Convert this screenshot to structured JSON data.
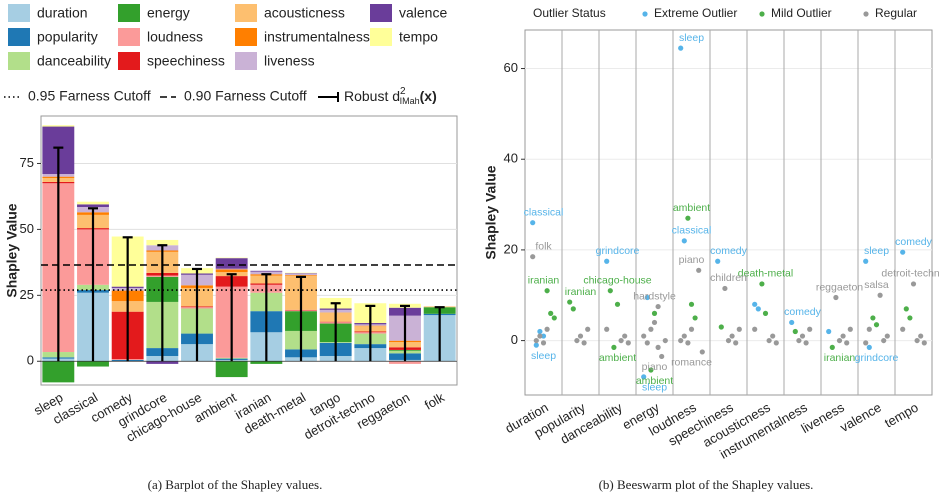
{
  "chart_data": [
    {
      "type": "bar",
      "caption": "(a) Barplot of the Shapley values.",
      "y_label": "Shapley Value",
      "categories": [
        "sleep",
        "classical",
        "comedy",
        "grindcore",
        "chicago-house",
        "ambient",
        "iranian",
        "death-metal",
        "tango",
        "detroit-techno",
        "reggaeton",
        "folk"
      ],
      "ylim": [
        -9,
        93
      ],
      "yticks": [
        0,
        25,
        50,
        75
      ],
      "grid": true,
      "stacked": true,
      "series": [
        {
          "name": "duration",
          "color": "#a6cee3",
          "values": [
            1,
            26,
            0,
            2,
            6.5,
            0.5,
            11,
            1.5,
            2,
            5,
            0.5,
            17.5
          ]
        },
        {
          "name": "popularity",
          "color": "#1f78b4",
          "values": [
            0.5,
            1,
            0.5,
            3,
            4,
            0.5,
            8,
            3,
            5,
            1.5,
            2.5,
            0.5
          ]
        },
        {
          "name": "danceability",
          "color": "#b2df8a",
          "values": [
            2,
            2,
            0,
            17.5,
            9.5,
            0.3,
            7,
            7,
            0.3,
            4,
            1,
            0
          ]
        },
        {
          "name": "energy",
          "color": "#33a02c",
          "values": [
            -8,
            -2,
            0,
            9.5,
            0,
            -6,
            -1,
            7.5,
            7,
            0,
            0.3,
            2.5
          ]
        },
        {
          "name": "loudness",
          "color": "#fb9a99",
          "values": [
            64,
            21,
            0.3,
            0.5,
            0.5,
            27,
            3,
            0.3,
            0.5,
            0.5,
            -1,
            0
          ]
        },
        {
          "name": "speechiness",
          "color": "#e31a1c",
          "values": [
            0.5,
            0.5,
            18,
            1,
            0.3,
            4,
            0.5,
            0.2,
            0.2,
            0.3,
            1,
            0
          ]
        },
        {
          "name": "acousticness",
          "color": "#fdbf6f",
          "values": [
            1.5,
            5,
            4,
            8,
            7,
            1.5,
            3,
            13,
            3.5,
            2,
            2,
            0.3
          ]
        },
        {
          "name": "instrumentalness",
          "color": "#ff7f00",
          "values": [
            0.5,
            1,
            4,
            0.5,
            1,
            1,
            0.5,
            0.2,
            0,
            0.2,
            0.5,
            0
          ]
        },
        {
          "name": "liveness",
          "color": "#cab2d6",
          "values": [
            1,
            2,
            1,
            2,
            4,
            0.3,
            1,
            0.5,
            1,
            0.5,
            9.5,
            0
          ]
        },
        {
          "name": "valence",
          "color": "#6a3d9a",
          "values": [
            18,
            1,
            0.5,
            -1,
            0.5,
            4,
            0.3,
            0.2,
            0.5,
            0.5,
            3,
            0
          ]
        },
        {
          "name": "tempo",
          "color": "#ffff99",
          "values": [
            0.5,
            1,
            19,
            2,
            2,
            0.2,
            0,
            0.2,
            4,
            7.5,
            1.5,
            0
          ]
        }
      ],
      "cutoffs": [
        {
          "label": "0.95 Farness Cutoff",
          "value": 27,
          "dash": "dotted"
        },
        {
          "label": "0.90 Farness Cutoff",
          "value": 36.5,
          "dash": "dashed"
        }
      ],
      "errorbar": {
        "name": "Robust d",
        "sup": "2",
        "sub": "IMah",
        "arg": "(x)",
        "color": "#000000",
        "values": [
          81,
          58,
          47,
          44,
          35,
          33,
          33,
          32,
          22,
          21,
          21,
          20.5
        ]
      }
    },
    {
      "type": "scatter",
      "caption": "(b) Beeswarm plot of the Shapley values.",
      "y_label": "Shapley Value",
      "legend_title": "Outlier Status",
      "categories": [
        "duration",
        "popularity",
        "danceability",
        "energy",
        "loudness",
        "speechiness",
        "acousticness",
        "instrumentalness",
        "liveness",
        "valence",
        "tempo"
      ],
      "ylim": [
        -12,
        68.5
      ],
      "yticks": [
        0,
        20,
        40,
        60
      ],
      "grid": true,
      "series": [
        {
          "name": "Extreme Outlier",
          "color": "#56b4e9",
          "x": [
            "duration",
            "duration",
            "duration",
            "duration",
            "danceability",
            "energy",
            "energy",
            "loudness",
            "loudness",
            "speechiness",
            "acousticness",
            "acousticness",
            "instrumentalness",
            "valence",
            "valence",
            "tempo",
            "liveness"
          ],
          "values": [
            26,
            -1,
            2,
            1,
            17.5,
            -8,
            9.5,
            64.5,
            22,
            17.5,
            8,
            7,
            4,
            17.5,
            -1.5,
            19.5,
            2
          ],
          "labels": [
            "classical",
            "sleep",
            null,
            null,
            "grindcore",
            "sleep",
            null,
            "sleep",
            "classical",
            "comedy",
            null,
            null,
            "comedy",
            "sleep",
            "grindcore",
            "comedy",
            null
          ]
        },
        {
          "name": "Mild Outlier",
          "color": "#4daf4a",
          "x": [
            "duration",
            "duration",
            "duration",
            "popularity",
            "popularity",
            "danceability",
            "danceability",
            "danceability",
            "energy",
            "energy",
            "loudness",
            "loudness",
            "loudness",
            "speechiness",
            "acousticness",
            "acousticness",
            "liveness",
            "valence",
            "valence",
            "tempo",
            "tempo",
            "instrumentalness"
          ],
          "values": [
            11,
            6,
            5,
            8.5,
            7,
            11,
            -1.5,
            8,
            -6.5,
            6,
            27,
            8,
            5,
            3,
            12.5,
            6,
            -1.5,
            5,
            3.5,
            7,
            5,
            2
          ],
          "labels": [
            "iranian",
            null,
            null,
            "iranian",
            null,
            "chicago-house",
            "ambient",
            null,
            "ambient",
            null,
            "ambient",
            null,
            null,
            null,
            "death-metal",
            null,
            "iranian",
            null,
            null,
            null,
            null,
            null
          ]
        },
        {
          "name": "Regular",
          "color": "#999999",
          "x": [
            "duration",
            "energy",
            "energy",
            "loudness",
            "loudness",
            "speechiness",
            "liveness",
            "valence",
            "tempo",
            "duration",
            "duration",
            "duration",
            "duration",
            "popularity",
            "popularity",
            "popularity",
            "popularity",
            "danceability",
            "danceability",
            "danceability",
            "danceability",
            "energy",
            "energy",
            "energy",
            "energy",
            "energy",
            "energy",
            "loudness",
            "loudness",
            "loudness",
            "loudness",
            "speechiness",
            "speechiness",
            "speechiness",
            "speechiness",
            "acousticness",
            "acousticness",
            "acousticness",
            "acousticness",
            "instrumentalness",
            "instrumentalness",
            "instrumentalness",
            "instrumentalness",
            "liveness",
            "liveness",
            "liveness",
            "liveness",
            "valence",
            "valence",
            "valence",
            "valence",
            "tempo",
            "tempo",
            "tempo",
            "tempo"
          ],
          "values": [
            18.5,
            7.5,
            -3.5,
            15.5,
            -2.5,
            11.5,
            9.5,
            10,
            12.5,
            0,
            1,
            -0.5,
            2.5,
            0,
            1,
            -0.5,
            2.5,
            0,
            1,
            -0.5,
            2.5,
            0,
            1,
            -0.5,
            2.5,
            4,
            -1.5,
            0,
            1,
            -0.5,
            2.5,
            0,
            1,
            -0.5,
            2.5,
            0,
            1,
            -0.5,
            2.5,
            0,
            1,
            -0.5,
            2.5,
            0,
            1,
            -0.5,
            2.5,
            0,
            1,
            -0.5,
            2.5,
            0,
            1,
            -0.5,
            2.5
          ],
          "labels": [
            "folk",
            "hardstyle",
            "piano",
            "piano",
            "romance",
            "children",
            "reggaeton",
            "salsa",
            "detroit-techno",
            null,
            null,
            null,
            null,
            null,
            null,
            null,
            null,
            null,
            null,
            null,
            null,
            null,
            null,
            null,
            null,
            null,
            null,
            null,
            null,
            null,
            null,
            null,
            null,
            null,
            null,
            null,
            null,
            null,
            null,
            null,
            null,
            null,
            null,
            null,
            null,
            null,
            null,
            null,
            null,
            null,
            null,
            null,
            null,
            null,
            null
          ]
        }
      ]
    }
  ]
}
